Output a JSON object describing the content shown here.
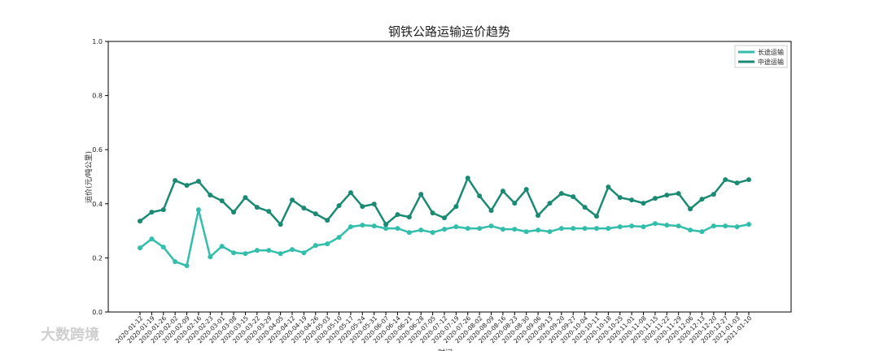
{
  "chart_data": {
    "type": "line",
    "title": "钢铁公路运输运价趋势",
    "x_label": "时间",
    "y_label": "运价(元/吨公里)",
    "watermark": "大数跨境",
    "legend": "upper right",
    "categories": [
      "2020-01-12",
      "2020-01-19",
      "2020-01-26",
      "2020-02-02",
      "2020-02-09",
      "2020-02-16",
      "2020-02-23",
      "2020-03-01",
      "2020-03-08",
      "2020-03-15",
      "2020-03-22",
      "2020-03-29",
      "2020-04-05",
      "2020-04-12",
      "2020-04-19",
      "2020-04-26",
      "2020-05-03",
      "2020-05-10",
      "2020-05-17",
      "2020-05-24",
      "2020-05-31",
      "2020-06-07",
      "2020-06-14",
      "2020-06-21",
      "2020-06-28",
      "2020-07-05",
      "2020-07-12",
      "2020-07-19",
      "2020-07-26",
      "2020-08-02",
      "2020-08-09",
      "2020-08-16",
      "2020-08-23",
      "2020-08-30",
      "2020-09-06",
      "2020-09-13",
      "2020-09-20",
      "2020-09-27",
      "2020-10-04",
      "2020-10-11",
      "2020-10-18",
      "2020-10-25",
      "2020-11-01",
      "2020-11-08",
      "2020-11-15",
      "2020-11-22",
      "2020-11-29",
      "2020-12-06",
      "2020-12-13",
      "2020-12-20",
      "2020-12-27",
      "2021-01-03",
      "2021-01-10"
    ],
    "series": [
      {
        "name": "长途运输",
        "color": "#33bdab",
        "values": [
          0.237,
          0.27,
          0.24,
          0.186,
          0.171,
          0.378,
          0.204,
          0.243,
          0.219,
          0.216,
          0.228,
          0.228,
          0.216,
          0.231,
          0.219,
          0.246,
          0.252,
          0.276,
          0.315,
          0.321,
          0.318,
          0.309,
          0.309,
          0.294,
          0.303,
          0.294,
          0.306,
          0.315,
          0.309,
          0.309,
          0.318,
          0.306,
          0.306,
          0.297,
          0.303,
          0.297,
          0.309,
          0.309,
          0.309,
          0.309,
          0.309,
          0.315,
          0.318,
          0.315,
          0.327,
          0.321,
          0.318,
          0.303,
          0.297,
          0.318,
          0.318,
          0.315,
          0.324
        ]
      },
      {
        "name": "中途运输",
        "color": "#1b8a73",
        "values": [
          0.336,
          0.369,
          0.378,
          0.486,
          0.468,
          0.483,
          0.432,
          0.411,
          0.369,
          0.423,
          0.387,
          0.372,
          0.324,
          0.414,
          0.384,
          0.363,
          0.339,
          0.393,
          0.441,
          0.39,
          0.399,
          0.324,
          0.36,
          0.351,
          0.435,
          0.366,
          0.348,
          0.39,
          0.495,
          0.429,
          0.375,
          0.447,
          0.402,
          0.453,
          0.357,
          0.402,
          0.438,
          0.426,
          0.387,
          0.354,
          0.462,
          0.423,
          0.414,
          0.402,
          0.42,
          0.432,
          0.438,
          0.381,
          0.417,
          0.435,
          0.489,
          0.477,
          0.489
        ]
      }
    ],
    "ylim": [
      0,
      1
    ],
    "yticks": [
      {
        "value": 0,
        "label": "0.0"
      },
      0.2,
      0.4,
      0.6,
      0.8,
      {
        "value": 1,
        "label": "1.0"
      }
    ]
  }
}
